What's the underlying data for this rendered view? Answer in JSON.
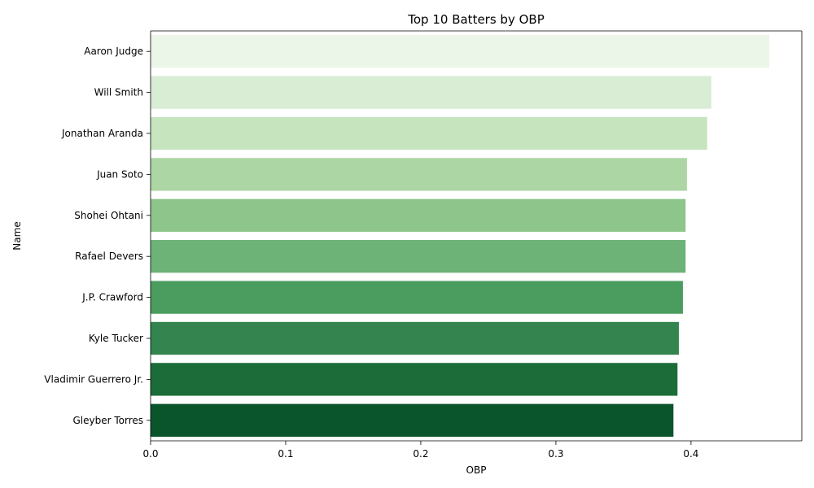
{
  "chart_data": {
    "type": "bar",
    "orientation": "horizontal",
    "title": "Top 10 Batters by OBP",
    "xlabel": "OBP",
    "ylabel": "Name",
    "xlim": [
      0,
      0.482
    ],
    "x_ticks": [
      "0.0",
      "0.1",
      "0.2",
      "0.3",
      "0.4"
    ],
    "x_tick_values": [
      0,
      0.1,
      0.2,
      0.3,
      0.4
    ],
    "grid": false,
    "legend": "none",
    "categories": [
      "Aaron Judge",
      "Will Smith",
      "Jonathan Aranda",
      "Juan Soto",
      "Shohei Ohtani",
      "Rafael Devers",
      "J.P. Crawford",
      "Kyle Tucker",
      "Vladimir Guerrero Jr.",
      "Gleyber Torres"
    ],
    "values": [
      0.458,
      0.415,
      0.412,
      0.397,
      0.396,
      0.396,
      0.394,
      0.391,
      0.39,
      0.387
    ],
    "colors": [
      "#ebf5e8",
      "#d9edd5",
      "#c6e5bf",
      "#acd6a4",
      "#8ec58a",
      "#6db277",
      "#4a9c5f",
      "#33844f",
      "#1c6c3a",
      "#0b552c"
    ]
  }
}
